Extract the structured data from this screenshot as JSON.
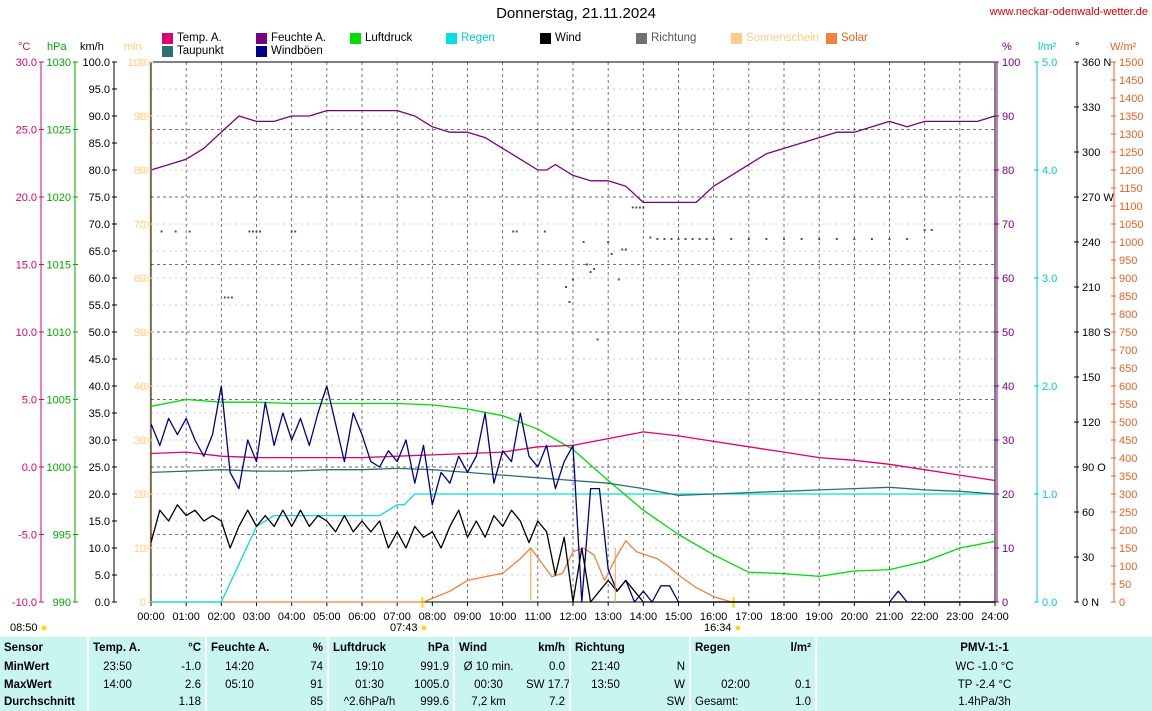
{
  "chart_data": {
    "type": "line",
    "title": "Donnerstag, 21.11.2024",
    "source_text": "www.neckar-odenwald-wetter.de",
    "x_ticks": [
      "00:00",
      "01:00",
      "02:00",
      "03:00",
      "04:00",
      "05:00",
      "06:00",
      "07:00",
      "08:00",
      "09:00",
      "10:00",
      "11:00",
      "12:00",
      "13:00",
      "14:00",
      "15:00",
      "16:00",
      "17:00",
      "18:00",
      "19:00",
      "20:00",
      "21:00",
      "22:00",
      "23:00",
      "24:00"
    ],
    "sunrise": "07:43",
    "sunset": "16:34",
    "first_label": "08:50",
    "legend": [
      {
        "label": "Temp. A.",
        "color": "#e0006e"
      },
      {
        "label": "Taupunkt",
        "color": "#2f6f6f"
      },
      {
        "label": "Feuchte A.",
        "color": "#7a0080"
      },
      {
        "label": "Windböen",
        "color": "#00008b"
      },
      {
        "label": "Luftdruck",
        "color": "#00dd00"
      },
      {
        "label": "Regen",
        "color": "#00e0e0"
      },
      {
        "label": "Wind",
        "color": "#000000"
      },
      {
        "label": "Richtung",
        "color": "#707070"
      },
      {
        "label": "Sonnenschein",
        "color": "#ffcc88"
      },
      {
        "label": "Solar",
        "color": "#f08040"
      }
    ],
    "axes": {
      "temp": {
        "unit": "°C",
        "color": "#e0006e",
        "ticks": [
          "30.0",
          "25.0",
          "20.0",
          "15.0",
          "10.0",
          "5.0",
          "0.0",
          "-5.0",
          "-10.0"
        ],
        "range": [
          -10,
          30
        ]
      },
      "press": {
        "unit": "hPa",
        "color": "#00aa00",
        "ticks": [
          "1030",
          "1025",
          "1020",
          "1015",
          "1010",
          "1005",
          "1000",
          "995",
          "990"
        ],
        "range": [
          990,
          1030
        ]
      },
      "wind": {
        "unit": "km/h",
        "color": "#000000",
        "ticks": [
          "100.0",
          "95.0",
          "90.0",
          "85.0",
          "80.0",
          "75.0",
          "70.0",
          "65.0",
          "60.0",
          "55.0",
          "50.0",
          "45.0",
          "40.0",
          "35.0",
          "30.0",
          "25.0",
          "20.0",
          "15.0",
          "10.0",
          "5.0",
          "0.0"
        ],
        "range": [
          0,
          100
        ]
      },
      "sun": {
        "unit": "min",
        "color": "#ffd080",
        "ticks": [
          "100",
          "90",
          "80",
          "70",
          "60",
          "50",
          "40",
          "30",
          "20",
          "10",
          "0"
        ],
        "range": [
          0,
          100
        ]
      },
      "hum": {
        "unit": "%",
        "color": "#7a0080",
        "ticks": [
          "100",
          "90",
          "80",
          "70",
          "60",
          "50",
          "40",
          "30",
          "20",
          "10",
          "0"
        ],
        "range": [
          0,
          100
        ]
      },
      "rain": {
        "unit": "l/m²",
        "color": "#00cccc",
        "ticks": [
          "5.0",
          "4.0",
          "3.0",
          "2.0",
          "1.0",
          "0.0"
        ],
        "range": [
          0,
          5
        ]
      },
      "dir": {
        "unit": "°",
        "color": "#000000",
        "ticks": [
          "360 N",
          "330",
          "300",
          "270 W",
          "240",
          "210",
          "180 S",
          "150",
          "120",
          "90 O",
          "60",
          "30",
          "0 N"
        ],
        "range": [
          0,
          360
        ]
      },
      "solar": {
        "unit": "W/m²",
        "color": "#f06020",
        "ticks": [
          "1500",
          "1450",
          "1400",
          "1350",
          "1300",
          "1250",
          "1200",
          "1150",
          "1100",
          "1050",
          "1000",
          "950",
          "900",
          "850",
          "800",
          "750",
          "700",
          "650",
          "600",
          "550",
          "500",
          "450",
          "400",
          "350",
          "300",
          "250",
          "200",
          "150",
          "100",
          "50",
          "0"
        ],
        "range": [
          0,
          1500
        ]
      }
    },
    "series": [
      {
        "name": "Feuchte A.",
        "axis": "hum",
        "x": [
          0,
          0.5,
          1,
          1.5,
          2,
          2.5,
          3,
          3.5,
          4,
          4.5,
          5,
          5.5,
          6,
          6.5,
          7,
          7.5,
          8,
          8.5,
          9,
          9.5,
          10,
          10.5,
          11,
          11.25,
          11.5,
          11.75,
          12,
          12.5,
          13,
          13.5,
          14,
          14.2,
          14.5,
          15,
          15.5,
          16,
          16.5,
          17,
          17.5,
          18,
          18.5,
          19,
          19.5,
          20,
          20.5,
          21,
          21.5,
          22,
          22.5,
          23,
          23.5,
          24
        ],
        "y": [
          80,
          81,
          82,
          84,
          87,
          90,
          89,
          89,
          90,
          90,
          91,
          91,
          91,
          91,
          91,
          90,
          88,
          87,
          87,
          86,
          84,
          82,
          80,
          80,
          81,
          80,
          79,
          78,
          78,
          77,
          74,
          74,
          74,
          74,
          74,
          77,
          79,
          81,
          83,
          84,
          85,
          86,
          87,
          87,
          88,
          89,
          88,
          89,
          89,
          89,
          89,
          90
        ]
      },
      {
        "name": "Temp. A.",
        "axis": "temp",
        "x": [
          0,
          1,
          2,
          3,
          4,
          5,
          6,
          7,
          8,
          9,
          10,
          11,
          12,
          13,
          14,
          15,
          16,
          17,
          18,
          19,
          20,
          21,
          22,
          23,
          24
        ],
        "y": [
          1.0,
          1.1,
          0.8,
          0.7,
          0.7,
          0.7,
          0.7,
          0.8,
          0.9,
          1.0,
          1.1,
          1.5,
          1.6,
          2.1,
          2.6,
          2.3,
          1.9,
          1.5,
          1.1,
          0.7,
          0.5,
          0.2,
          -0.2,
          -0.6,
          -1.0
        ]
      },
      {
        "name": "Taupunkt",
        "axis": "temp",
        "x": [
          0,
          1,
          2,
          3,
          4,
          5,
          6,
          7,
          8,
          9,
          10,
          11,
          12,
          13,
          14,
          15,
          16,
          17,
          18,
          19,
          20,
          21,
          22,
          23,
          24
        ],
        "y": [
          -0.4,
          -0.3,
          -0.2,
          -0.3,
          -0.3,
          -0.2,
          -0.2,
          -0.1,
          -0.2,
          -0.4,
          -0.6,
          -0.8,
          -1.0,
          -1.2,
          -1.6,
          -2.1,
          -2.0,
          -1.9,
          -1.8,
          -1.7,
          -1.6,
          -1.5,
          -1.7,
          -1.8,
          -2.0
        ]
      },
      {
        "name": "Luftdruck",
        "axis": "press",
        "x": [
          0,
          1,
          2,
          3,
          4,
          5,
          6,
          7,
          8,
          9,
          10,
          11,
          12,
          13,
          14,
          15,
          16,
          17,
          18,
          19,
          20,
          21,
          22,
          23,
          24
        ],
        "y": [
          1004.5,
          1005.0,
          1004.8,
          1004.8,
          1004.7,
          1004.7,
          1004.7,
          1004.7,
          1004.6,
          1004.3,
          1003.8,
          1002.8,
          1001.3,
          999.0,
          996.8,
          995.0,
          993.5,
          992.2,
          992.1,
          991.9,
          992.3,
          992.4,
          993.0,
          994.0,
          994.5
        ]
      },
      {
        "name": "Windböen",
        "axis": "wind",
        "x": [
          0,
          0.25,
          0.5,
          0.75,
          1,
          1.25,
          1.5,
          1.75,
          2,
          2.25,
          2.5,
          2.75,
          3,
          3.25,
          3.5,
          3.75,
          4,
          4.25,
          4.5,
          4.75,
          5,
          5.25,
          5.5,
          5.75,
          6,
          6.25,
          6.5,
          6.75,
          7,
          7.25,
          7.5,
          7.75,
          8,
          8.25,
          8.5,
          8.75,
          9,
          9.25,
          9.5,
          9.75,
          10,
          10.25,
          10.5,
          10.75,
          11,
          11.25,
          11.5,
          11.75,
          12,
          12.25,
          12.5,
          12.75,
          13,
          13.25,
          13.5,
          13.75,
          14,
          14.25,
          14.5,
          14.75,
          15,
          15.5,
          16,
          16.5,
          17,
          17.5,
          18,
          18.5,
          19,
          19.5,
          20,
          20.5,
          21,
          21.25,
          21.5,
          21.75,
          22,
          22.5,
          23,
          23.5,
          24
        ],
        "y": [
          33,
          29,
          34,
          31,
          34,
          30,
          27,
          31,
          40,
          24,
          21,
          30,
          26,
          37,
          29,
          35,
          30,
          34,
          29,
          35,
          40,
          33,
          26,
          35,
          31,
          26,
          25,
          28,
          26,
          30,
          22,
          29,
          18,
          24,
          22,
          27,
          24,
          27,
          35,
          22,
          28,
          26,
          35,
          27,
          25,
          29,
          21,
          26,
          29,
          0,
          21,
          21,
          6,
          2,
          4,
          0,
          2,
          0,
          3,
          3,
          0,
          0,
          0,
          0,
          0,
          0,
          0,
          0,
          0,
          0,
          0,
          0,
          0,
          2,
          0,
          0,
          0,
          0,
          0,
          0,
          0
        ]
      },
      {
        "name": "Wind",
        "axis": "wind",
        "x": [
          0,
          0.25,
          0.5,
          0.75,
          1,
          1.25,
          1.5,
          1.75,
          2,
          2.25,
          2.5,
          2.75,
          3,
          3.25,
          3.5,
          3.75,
          4,
          4.25,
          4.5,
          4.75,
          5,
          5.25,
          5.5,
          5.75,
          6,
          6.25,
          6.5,
          6.75,
          7,
          7.25,
          7.5,
          7.75,
          8,
          8.25,
          8.5,
          8.75,
          9,
          9.25,
          9.5,
          9.75,
          10,
          10.25,
          10.5,
          10.75,
          11,
          11.25,
          11.5,
          11.75,
          12,
          12.25,
          12.5,
          12.75,
          13,
          13.25,
          13.5,
          13.75,
          14,
          14.25,
          14.5,
          15,
          16,
          17,
          18,
          19,
          20,
          21,
          22,
          23,
          24
        ],
        "y": [
          11,
          17,
          15,
          18,
          16,
          17,
          15,
          16,
          15,
          10,
          14,
          17,
          14,
          16,
          14,
          17,
          14,
          17,
          14,
          16,
          15,
          13,
          16,
          13,
          15,
          13,
          15,
          10,
          13,
          10,
          14,
          12,
          13,
          10,
          14,
          17,
          12,
          15,
          12,
          16,
          14,
          17,
          15,
          11,
          15,
          13,
          5,
          12,
          0,
          10,
          0,
          2,
          4,
          2,
          4,
          2,
          0,
          0,
          0,
          0,
          0,
          0,
          0,
          0,
          0,
          0,
          0,
          0,
          0
        ]
      },
      {
        "name": "Regen",
        "axis": "rain",
        "x": [
          0,
          1.8,
          2,
          3,
          3.5,
          4,
          5,
          6,
          6.5,
          7,
          7.2,
          7.5,
          24
        ],
        "y": [
          0,
          0,
          0,
          0.7,
          0.8,
          0.8,
          0.8,
          0.8,
          0.8,
          0.9,
          0.9,
          1.0,
          1.0
        ]
      },
      {
        "name": "Solar",
        "axis": "solar",
        "x": [
          0,
          7.75,
          8,
          8.5,
          9,
          9.5,
          10,
          10.5,
          10.8,
          11.1,
          11.4,
          11.7,
          12,
          12.3,
          12.6,
          12.9,
          13.2,
          13.5,
          13.8,
          14.1,
          14.4,
          14.7,
          15,
          15.5,
          16,
          16.5,
          24
        ],
        "y": [
          0,
          0,
          10,
          30,
          60,
          70,
          80,
          120,
          150,
          110,
          70,
          80,
          140,
          150,
          130,
          60,
          120,
          170,
          140,
          130,
          120,
          100,
          75,
          40,
          15,
          0,
          0
        ]
      },
      {
        "name": "Richtung",
        "axis": "dir",
        "type": "scatter",
        "x": [
          0.3,
          0.7,
          1.1,
          2.1,
          2.2,
          2.3,
          2.8,
          2.9,
          3.0,
          3.1,
          4.0,
          4.1,
          10.3,
          10.4,
          11.2,
          11.8,
          11.9,
          12.0,
          12.3,
          12.4,
          12.5,
          12.6,
          12.7,
          13.0,
          13.1,
          13.3,
          13.4,
          13.5,
          13.7,
          13.8,
          13.9,
          14.0,
          14.2,
          14.4,
          14.6,
          14.8,
          15.0,
          15.2,
          15.4,
          15.6,
          15.8,
          16.0,
          16.5,
          17.0,
          17.5,
          18.0,
          18.5,
          19.0,
          19.5,
          20.0,
          20.5,
          21.0,
          21.5,
          22.0,
          22.2
        ],
        "y": [
          247,
          247,
          247,
          203,
          203,
          203,
          247,
          247,
          247,
          247,
          247,
          247,
          247,
          247,
          247,
          210,
          200,
          215,
          240,
          225,
          220,
          222,
          175,
          240,
          232,
          215,
          235,
          235,
          263,
          263,
          263,
          263,
          243,
          242,
          242,
          242,
          242,
          242,
          242,
          242,
          242,
          242,
          242,
          242,
          242,
          242,
          242,
          242,
          242,
          242,
          242,
          242,
          242,
          248,
          248
        ]
      }
    ]
  },
  "stats": {
    "headers": {
      "sensor": "Sensor",
      "temp": "Temp. A.",
      "temp_unit": "°C",
      "hum": "Feuchte A.",
      "hum_unit": "%",
      "press": "Luftdruck",
      "press_unit": "hPa",
      "wind": "Wind",
      "wind_unit": "km/h",
      "dir": "Richtung",
      "rain": "Regen",
      "rain_unit": "l/m²",
      "pmv": "PMV-1:-1"
    },
    "rows": [
      {
        "label": "MinWert",
        "temp_time": "23:50",
        "temp_val": "-1.0",
        "hum_time": "14:20",
        "hum_val": "74",
        "press_time": "19:10",
        "press_val": "991.9",
        "wind_time": "Ø 10 min.",
        "wind_val": "0.0",
        "dir_time": "21:40",
        "dir_val": "N",
        "rain_time": "",
        "rain_val": "",
        "pmv": "WC -1.0 °C"
      },
      {
        "label": "MaxWert",
        "temp_time": "14:00",
        "temp_val": "2.6",
        "hum_time": "05:10",
        "hum_val": "91",
        "press_time": "01:30",
        "press_val": "1005.0",
        "wind_time": "00:30",
        "wind_val": "SW 17.7",
        "dir_time": "13:50",
        "dir_val": "W",
        "rain_time": "02:00",
        "rain_val": "0.1",
        "pmv": "TP -2.4 °C"
      },
      {
        "label": "Durchschnitt",
        "temp_time": "",
        "temp_val": "1.18",
        "hum_time": "",
        "hum_val": "85",
        "press_time": "^2.6hPa/h",
        "press_val": "999.6",
        "wind_time": "7,2 km",
        "wind_val": "7.2",
        "dir_time": "",
        "dir_val": "SW",
        "rain_time": "Gesamt:",
        "rain_val": "1.0",
        "pmv": "1.4hPa/3h"
      }
    ]
  }
}
